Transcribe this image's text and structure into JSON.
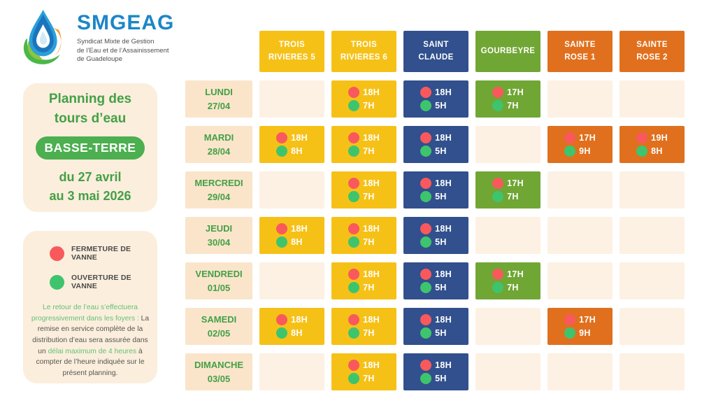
{
  "logo": {
    "name": "SMGEAG",
    "tagline_lines": [
      "Syndicat Mixte de Gestion",
      "de l’Eau et de l’Assainissement",
      "de Guadeloupe"
    ],
    "brand_color": "#1c86c8",
    "drop_color": "#2b9fd8",
    "leaf_color": "#4bb749",
    "accent_color": "#f7941d"
  },
  "title_panel": {
    "title_line1": "Planning des",
    "title_line2": "tours d’eau",
    "badge": "BASSE-TERRE",
    "period_line1": "du 27 avril",
    "period_line2": "au 3 mai 2026",
    "badge_color": "#4caf50",
    "text_color": "#43a047",
    "panel_color": "#fbeedc"
  },
  "legend": {
    "items": [
      {
        "id": "fermeture",
        "label": "FERMETURE DE VANNE",
        "color": "#f9595c"
      },
      {
        "id": "ouverture",
        "label": "OUVERTURE DE VANNE",
        "color": "#3ec46d"
      }
    ],
    "note_segments": [
      {
        "text": "Le retour de l’eau s’effectuera progressivement dans les foyers :",
        "tone": "green"
      },
      {
        "text": " La remise en service complète de la distribution d’eau sera assurée dans un ",
        "tone": "gray"
      },
      {
        "text": "délai maximum de 4 heures",
        "tone": "green"
      },
      {
        "text": " à compter de l’heure indiquée sur le présent planning.",
        "tone": "gray"
      }
    ]
  },
  "schedule": {
    "colors": {
      "close_dot": "#f9595c",
      "open_dot": "#3ec46d",
      "empty_cell": "#fdf1e3",
      "day_cell": "#fae5cb"
    },
    "columns": [
      {
        "id": "trois-rivieres-5",
        "label_lines": [
          "TROIS",
          "RIVIERES 5"
        ],
        "color": "#f6c117"
      },
      {
        "id": "trois-rivieres-6",
        "label_lines": [
          "TROIS",
          "RIVIERES 6"
        ],
        "color": "#f6c117"
      },
      {
        "id": "saint-claude",
        "label_lines": [
          "SAINT",
          "CLAUDE"
        ],
        "color": "#31508d"
      },
      {
        "id": "gourbeyre",
        "label_lines": [
          "GOURBEYRE"
        ],
        "color": "#70a634"
      },
      {
        "id": "sainte-rose-1",
        "label_lines": [
          "SAINTE",
          "ROSE 1"
        ],
        "color": "#e0701e"
      },
      {
        "id": "sainte-rose-2",
        "label_lines": [
          "SAINTE",
          "ROSE 2"
        ],
        "color": "#e0701e"
      }
    ],
    "rows": [
      {
        "day": "LUNDI",
        "date": "27/04",
        "cells": [
          null,
          {
            "close": "18H",
            "open": "7H"
          },
          {
            "close": "18H",
            "open": "5H"
          },
          {
            "close": "17H",
            "open": "7H"
          },
          null,
          null
        ]
      },
      {
        "day": "MARDI",
        "date": "28/04",
        "cells": [
          {
            "close": "18H",
            "open": "8H"
          },
          {
            "close": "18H",
            "open": "7H"
          },
          {
            "close": "18H",
            "open": "5H"
          },
          null,
          {
            "close": "17H",
            "open": "9H"
          },
          {
            "close": "19H",
            "open": "8H"
          }
        ]
      },
      {
        "day": "MERCREDI",
        "date": "29/04",
        "cells": [
          null,
          {
            "close": "18H",
            "open": "7H"
          },
          {
            "close": "18H",
            "open": "5H"
          },
          {
            "close": "17H",
            "open": "7H"
          },
          null,
          null
        ]
      },
      {
        "day": "JEUDI",
        "date": "30/04",
        "cells": [
          {
            "close": "18H",
            "open": "8H"
          },
          {
            "close": "18H",
            "open": "7H"
          },
          {
            "close": "18H",
            "open": "5H"
          },
          null,
          null,
          null
        ]
      },
      {
        "day": "VENDREDI",
        "date": "01/05",
        "cells": [
          null,
          {
            "close": "18H",
            "open": "7H"
          },
          {
            "close": "18H",
            "open": "5H"
          },
          {
            "close": "17H",
            "open": "7H"
          },
          null,
          null
        ]
      },
      {
        "day": "SAMEDI",
        "date": "02/05",
        "cells": [
          {
            "close": "18H",
            "open": "8H"
          },
          {
            "close": "18H",
            "open": "7H"
          },
          {
            "close": "18H",
            "open": "5H"
          },
          null,
          {
            "close": "17H",
            "open": "9H"
          },
          null
        ]
      },
      {
        "day": "DIMANCHE",
        "date": "03/05",
        "cells": [
          null,
          {
            "close": "18H",
            "open": "7H"
          },
          {
            "close": "18H",
            "open": "5H"
          },
          null,
          null,
          null
        ]
      }
    ]
  }
}
